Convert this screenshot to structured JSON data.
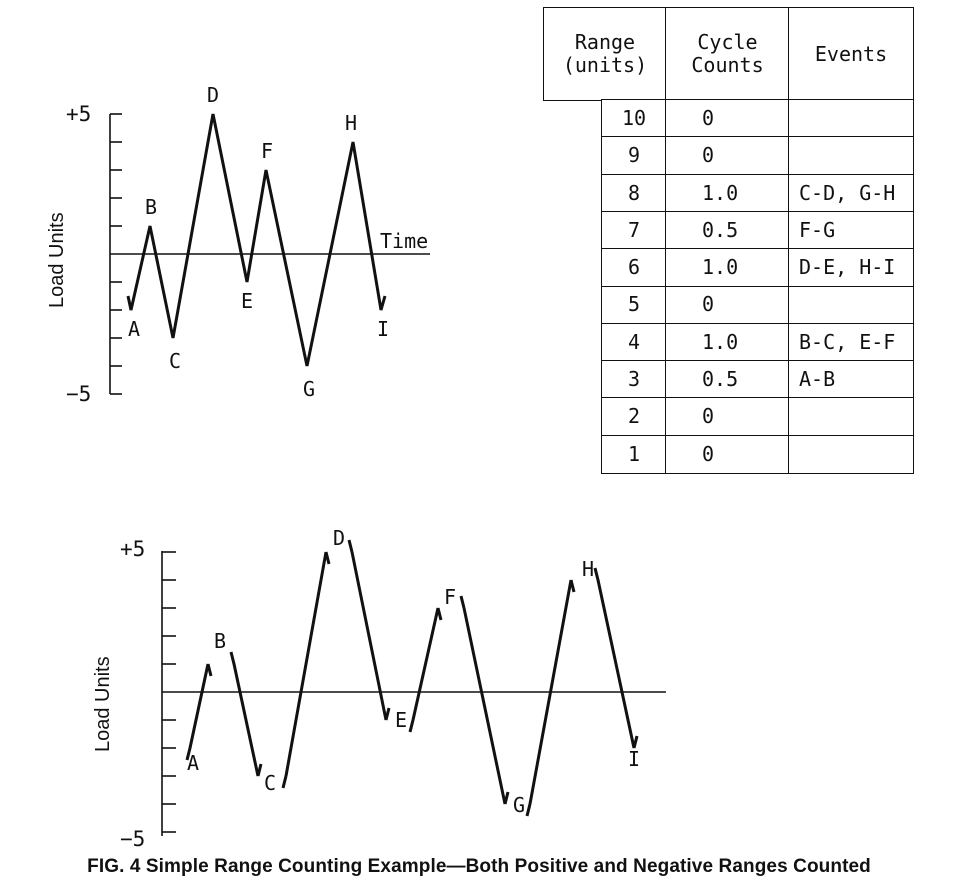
{
  "top_chart": {
    "ylabel": "Load Units",
    "y_max_label": "+5",
    "y_min_label": "−5",
    "time_label": "Time",
    "points": [
      {
        "label": "A",
        "value": -2
      },
      {
        "label": "B",
        "value": 1
      },
      {
        "label": "C",
        "value": -3
      },
      {
        "label": "D",
        "value": 5
      },
      {
        "label": "E",
        "value": -1
      },
      {
        "label": "F",
        "value": 3
      },
      {
        "label": "G",
        "value": -4
      },
      {
        "label": "H",
        "value": 4
      },
      {
        "label": "I",
        "value": -2
      }
    ]
  },
  "table": {
    "headers": [
      "Range\n(units)",
      "Cycle\nCounts",
      "Events"
    ],
    "rows": [
      {
        "range": "10",
        "count": "0",
        "events": ""
      },
      {
        "range": "9",
        "count": "0",
        "events": ""
      },
      {
        "range": "8",
        "count": "1.0",
        "events": "C-D, G-H"
      },
      {
        "range": "7",
        "count": "0.5",
        "events": "F-G"
      },
      {
        "range": "6",
        "count": "1.0",
        "events": "D-E, H-I"
      },
      {
        "range": "5",
        "count": "0",
        "events": ""
      },
      {
        "range": "4",
        "count": "1.0",
        "events": "B-C,  E-F"
      },
      {
        "range": "3",
        "count": "0.5",
        "events": "A-B"
      },
      {
        "range": "2",
        "count": "0",
        "events": ""
      },
      {
        "range": "1",
        "count": "0",
        "events": ""
      }
    ]
  },
  "bottom_chart": {
    "ylabel": "Load Units",
    "y_max_label": "+5",
    "y_min_label": "−5"
  },
  "caption": "FIG. 4 Simple Range Counting Example—Both Positive and Negative Ranges Counted"
}
